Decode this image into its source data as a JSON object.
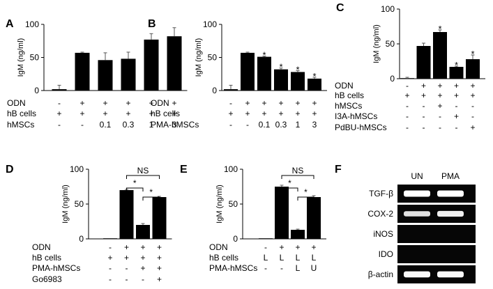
{
  "chart_data": [
    {
      "type": "bar",
      "panel": "A",
      "ylabel": "IgM (ng/ml)",
      "ylim": [
        0,
        100
      ],
      "yticks": [
        0,
        50,
        100
      ],
      "values": [
        2,
        57,
        46,
        48,
        77,
        82
      ],
      "errors": [
        6,
        1,
        11,
        10,
        9,
        13
      ],
      "stars": [
        "",
        "",
        "",
        "",
        "",
        ""
      ],
      "rows": [
        {
          "label": "ODN",
          "cells": [
            "-",
            "+",
            "+",
            "+",
            "+",
            "+"
          ]
        },
        {
          "label": "hB cells",
          "cells": [
            "+",
            "+",
            "+",
            "+",
            "+",
            "+"
          ]
        },
        {
          "label": "hMSCs",
          "cells": [
            "-",
            "-",
            "0.1",
            "0.3",
            "1",
            "3"
          ]
        }
      ]
    },
    {
      "type": "bar",
      "panel": "B",
      "ylabel": "IgM (ng/ml)",
      "ylim": [
        0,
        100
      ],
      "yticks": [
        0,
        50,
        100
      ],
      "values": [
        2,
        57,
        51,
        32,
        28,
        18
      ],
      "errors": [
        6,
        1,
        1,
        2,
        2,
        2
      ],
      "stars": [
        "",
        "",
        "*",
        "*",
        "*",
        "*"
      ],
      "rows": [
        {
          "label": "ODN",
          "cells": [
            "-",
            "+",
            "+",
            "+",
            "+",
            "+"
          ]
        },
        {
          "label": "hB cells",
          "cells": [
            "+",
            "+",
            "+",
            "+",
            "+",
            "+"
          ]
        },
        {
          "label": "PMA-hMSCs",
          "cells": [
            "-",
            "-",
            "0.1",
            "0.3",
            "1",
            "3"
          ]
        }
      ]
    },
    {
      "type": "bar",
      "panel": "C",
      "ylabel": "IgM (ng/ml)",
      "ylim": [
        0,
        100
      ],
      "yticks": [
        0,
        50,
        100
      ],
      "values": [
        0,
        47,
        67,
        17,
        28
      ],
      "errors": [
        2,
        4,
        3,
        1,
        6
      ],
      "stars": [
        "",
        "",
        "*",
        "*",
        "*"
      ],
      "rows": [
        {
          "label": "ODN",
          "cells": [
            "-",
            "+",
            "+",
            "+",
            "+"
          ]
        },
        {
          "label": "hB cells",
          "cells": [
            "+",
            "+",
            "+",
            "+",
            "+"
          ]
        },
        {
          "label": "hMSCs",
          "cells": [
            "-",
            "-",
            "+",
            "-",
            "-"
          ]
        },
        {
          "label": "I3A-hMSCs",
          "cells": [
            "-",
            "-",
            "-",
            "+",
            "-"
          ]
        },
        {
          "label": "PdBU-hMSCs",
          "cells": [
            "-",
            "-",
            "-",
            "-",
            "+"
          ]
        }
      ]
    },
    {
      "type": "bar",
      "panel": "D",
      "ylabel": "IgM (ng/ml)",
      "ylim": [
        0,
        100
      ],
      "yticks": [
        0,
        50,
        100
      ],
      "values": [
        0,
        70,
        20,
        60
      ],
      "errors": [
        0,
        1,
        2,
        1
      ],
      "stars": [
        "",
        "",
        "",
        ""
      ],
      "brackets": [
        {
          "from": 1,
          "to": 3,
          "label": "NS"
        },
        {
          "from": 1,
          "to": 2,
          "label": "*"
        },
        {
          "from": 2,
          "to": 3,
          "label": "*"
        }
      ],
      "rows": [
        {
          "label": "ODN",
          "cells": [
            "-",
            "+",
            "+",
            "+"
          ]
        },
        {
          "label": "hB cells",
          "cells": [
            "+",
            "+",
            "+",
            "+"
          ]
        },
        {
          "label": "PMA-hMSCs",
          "cells": [
            "-",
            "-",
            "+",
            "+"
          ]
        },
        {
          "label": "Go6983",
          "cells": [
            "-",
            "-",
            "-",
            "+"
          ]
        }
      ]
    },
    {
      "type": "bar",
      "panel": "E",
      "ylabel": "IgM (ng/ml)",
      "ylim": [
        0,
        100
      ],
      "yticks": [
        0,
        50,
        100
      ],
      "values": [
        0,
        75,
        13,
        60
      ],
      "errors": [
        0,
        2,
        1,
        2
      ],
      "stars": [
        "",
        "",
        "",
        ""
      ],
      "brackets": [
        {
          "from": 1,
          "to": 3,
          "label": "NS"
        },
        {
          "from": 1,
          "to": 2,
          "label": "*"
        },
        {
          "from": 2,
          "to": 3,
          "label": "*"
        }
      ],
      "rows": [
        {
          "label": "ODN",
          "cells": [
            "-",
            "+",
            "+",
            "+"
          ]
        },
        {
          "label": "hB cells",
          "cells": [
            "L",
            "L",
            "L",
            "L"
          ]
        },
        {
          "label": "PMA-hMSCs",
          "cells": [
            "-",
            "-",
            "L",
            "U"
          ]
        }
      ]
    }
  ],
  "gel": {
    "panel": "F",
    "columns": [
      "UN",
      "PMA"
    ],
    "rows": [
      {
        "label": "TGF-β",
        "bands": [
          1.0,
          1.0
        ]
      },
      {
        "label": "COX-2",
        "bands": [
          0.7,
          0.85
        ]
      },
      {
        "label": "iNOS",
        "bands": [
          0,
          0
        ]
      },
      {
        "label": "IDO",
        "bands": [
          0,
          0
        ]
      },
      {
        "label": "β-actin",
        "bands": [
          0.95,
          0.95
        ]
      }
    ]
  }
}
